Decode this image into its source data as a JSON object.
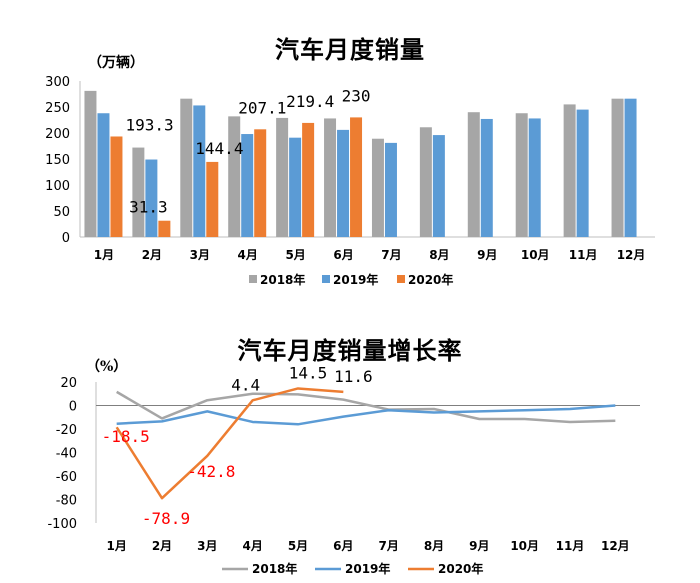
{
  "colors": {
    "s2018": "#a6a6a6",
    "s2019": "#5b9bd5",
    "s2020": "#ed7d31",
    "red_label": "#ff0000"
  },
  "chart_data": [
    {
      "type": "bar",
      "title": "汽车月度销量",
      "ylabel": "（万辆）",
      "ylim": [
        0,
        300
      ],
      "yticks": [
        "0",
        "50",
        "100",
        "150",
        "200",
        "250",
        "300"
      ],
      "categories": [
        "1月",
        "2月",
        "3月",
        "4月",
        "5月",
        "6月",
        "7月",
        "8月",
        "9月",
        "10月",
        "11月",
        "12月"
      ],
      "series": [
        {
          "name": "2018年",
          "values": [
            281,
            172,
            266,
            232,
            229,
            228,
            189,
            211,
            240,
            238,
            255,
            266
          ]
        },
        {
          "name": "2019年",
          "values": [
            238,
            149,
            253,
            198,
            191,
            206,
            181,
            196,
            227,
            228,
            245,
            266
          ]
        },
        {
          "name": "2020年",
          "values": [
            193.3,
            31.3,
            144.4,
            207.1,
            219.4,
            230,
            null,
            null,
            null,
            null,
            null,
            null
          ]
        }
      ],
      "data_labels": [
        {
          "series": "2020年",
          "index": 0,
          "text": "193.3"
        },
        {
          "series": "2020年",
          "index": 1,
          "text": "31.3"
        },
        {
          "series": "2020年",
          "index": 2,
          "text": "144.4"
        },
        {
          "series": "2020年",
          "index": 3,
          "text": "207.1"
        },
        {
          "series": "2020年",
          "index": 4,
          "text": "219.4"
        },
        {
          "series": "2020年",
          "index": 5,
          "text": "230"
        }
      ],
      "legend": [
        "2018年",
        "2019年",
        "2020年"
      ],
      "legend_position": "bottom",
      "grid": false
    },
    {
      "type": "line",
      "title": "汽车月度销量增长率",
      "ylabel": "（%）",
      "ylim": [
        -100,
        20
      ],
      "yticks": [
        "20",
        "0",
        "-20",
        "-40",
        "-60",
        "-80",
        "-100"
      ],
      "categories": [
        "1月",
        "2月",
        "3月",
        "4月",
        "5月",
        "6月",
        "7月",
        "8月",
        "9月",
        "10月",
        "11月",
        "12月"
      ],
      "series": [
        {
          "name": "2018年",
          "values": [
            11.6,
            -11,
            4.5,
            10,
            9.5,
            5,
            -3.5,
            -3,
            -11.5,
            -11.5,
            -14,
            -13
          ]
        },
        {
          "name": "2019年",
          "values": [
            -15.5,
            -13.5,
            -5,
            -14,
            -16,
            -9.5,
            -4,
            -6,
            -5,
            -4,
            -3,
            0
          ]
        },
        {
          "name": "2020年",
          "values": [
            -18.5,
            -78.9,
            -42.8,
            4.4,
            14.5,
            11.6,
            null,
            null,
            null,
            null,
            null,
            null
          ]
        }
      ],
      "data_labels": [
        {
          "series": "2020年",
          "index": 0,
          "text": "-18.5",
          "color": "red"
        },
        {
          "series": "2020年",
          "index": 1,
          "text": "-78.9",
          "color": "red"
        },
        {
          "series": "2020年",
          "index": 2,
          "text": "-42.8",
          "color": "red"
        },
        {
          "series": "2020年",
          "index": 3,
          "text": "4.4",
          "color": "black"
        },
        {
          "series": "2020年",
          "index": 4,
          "text": "14.5",
          "color": "black"
        },
        {
          "series": "2020年",
          "index": 5,
          "text": "11.6",
          "color": "black"
        }
      ],
      "legend": [
        "2018年",
        "2019年",
        "2020年"
      ],
      "legend_position": "bottom",
      "grid": false
    }
  ]
}
